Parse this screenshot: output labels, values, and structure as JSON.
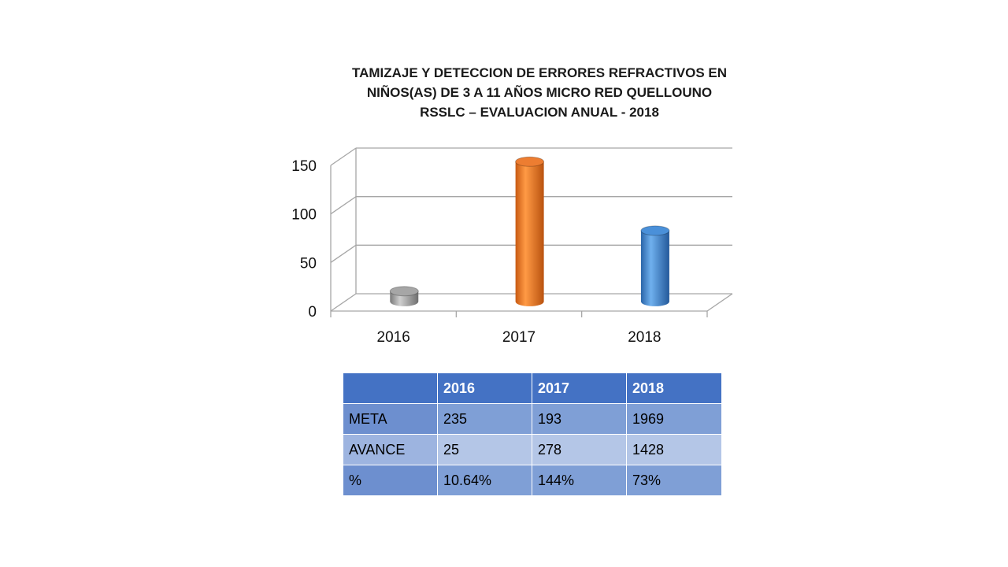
{
  "chart_data": {
    "type": "bar",
    "title_lines": [
      "TAMIZAJE Y DETECCION DE ERRORES REFRACTIVOS EN",
      "NIÑOS(AS) DE 3  A 11 AÑOS MICRO RED QUELLOUNO",
      "RSSLC – EVALUACION ANUAL - 2018"
    ],
    "categories": [
      "2016",
      "2017",
      "2018"
    ],
    "values": [
      10.64,
      144,
      73
    ],
    "ylim": [
      0,
      150
    ],
    "yticks": [
      0,
      50,
      100,
      150
    ],
    "xlabel": "",
    "ylabel": "",
    "grid": true,
    "legend": "none",
    "bar_colors": [
      "#a6a6a6",
      "#ed7d31",
      "#4a90d9"
    ]
  },
  "table": {
    "headers": [
      "",
      "2016",
      "2017",
      "2018"
    ],
    "rows": [
      [
        "META",
        "235",
        "193",
        "1969"
      ],
      [
        "AVANCE",
        "25",
        "278",
        "1428"
      ],
      [
        "%",
        "10.64%",
        "144%",
        "73%"
      ]
    ]
  }
}
